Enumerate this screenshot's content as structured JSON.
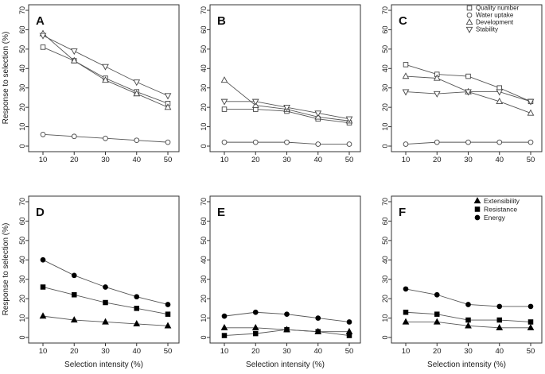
{
  "figure": {
    "y_axis_label": "Response to selection (%)",
    "x_axis_label": "Selection intensity (%)",
    "colors": {
      "line": "#555555",
      "open_marker_stroke": "#444444",
      "open_marker_fill": "#ffffff",
      "filled_marker": "#000000",
      "axis": "#333333",
      "text": "#1a1a1a"
    }
  },
  "chart_data": [
    {
      "type": "line",
      "panel": "A",
      "x": [
        10,
        20,
        30,
        40,
        50
      ],
      "x_ticks": [
        10,
        20,
        30,
        40,
        50
      ],
      "y_ticks": [
        0,
        10,
        20,
        30,
        40,
        50,
        60,
        70
      ],
      "xlim": [
        10,
        50
      ],
      "ylim": [
        0,
        70
      ],
      "legend": false,
      "series": [
        {
          "name": "Quality number",
          "marker": "square",
          "filled": false,
          "values": [
            51,
            44,
            35,
            28,
            22
          ]
        },
        {
          "name": "Water uptake",
          "marker": "circle",
          "filled": false,
          "values": [
            6,
            5,
            4,
            3,
            2
          ]
        },
        {
          "name": "Development",
          "marker": "triangle-up",
          "filled": false,
          "values": [
            58,
            44,
            34,
            27,
            20
          ]
        },
        {
          "name": "Stability",
          "marker": "triangle-down",
          "filled": false,
          "values": [
            57,
            49,
            41,
            33,
            26
          ]
        }
      ]
    },
    {
      "type": "line",
      "panel": "B",
      "x": [
        10,
        20,
        30,
        40,
        50
      ],
      "x_ticks": [
        10,
        20,
        30,
        40,
        50
      ],
      "y_ticks": [
        0,
        10,
        20,
        30,
        40,
        50,
        60,
        70
      ],
      "xlim": [
        10,
        50
      ],
      "ylim": [
        0,
        70
      ],
      "legend": false,
      "series": [
        {
          "name": "Quality number",
          "marker": "square",
          "filled": false,
          "values": [
            19,
            19,
            18,
            14,
            12
          ]
        },
        {
          "name": "Water uptake",
          "marker": "circle",
          "filled": false,
          "values": [
            2,
            2,
            2,
            1,
            1
          ]
        },
        {
          "name": "Development",
          "marker": "triangle-up",
          "filled": false,
          "values": [
            34,
            21,
            19,
            15,
            13
          ]
        },
        {
          "name": "Stability",
          "marker": "triangle-down",
          "filled": false,
          "values": [
            23,
            23,
            20,
            17,
            14
          ]
        }
      ]
    },
    {
      "type": "line",
      "panel": "C",
      "x": [
        10,
        20,
        30,
        40,
        50
      ],
      "x_ticks": [
        10,
        20,
        30,
        40,
        50
      ],
      "y_ticks": [
        0,
        10,
        20,
        30,
        40,
        50,
        60,
        70
      ],
      "xlim": [
        10,
        50
      ],
      "ylim": [
        0,
        70
      ],
      "legend": true,
      "series": [
        {
          "name": "Quality number",
          "marker": "square",
          "filled": false,
          "values": [
            42,
            37,
            36,
            30,
            23
          ]
        },
        {
          "name": "Water uptake",
          "marker": "circle",
          "filled": false,
          "values": [
            1,
            2,
            2,
            2,
            2
          ]
        },
        {
          "name": "Development",
          "marker": "triangle-up",
          "filled": false,
          "values": [
            36,
            35,
            28,
            23,
            17
          ]
        },
        {
          "name": "Stability",
          "marker": "triangle-down",
          "filled": false,
          "values": [
            28,
            27,
            28,
            28,
            23
          ]
        }
      ]
    },
    {
      "type": "line",
      "panel": "D",
      "x": [
        10,
        20,
        30,
        40,
        50
      ],
      "x_ticks": [
        10,
        20,
        30,
        40,
        50
      ],
      "y_ticks": [
        0,
        10,
        20,
        30,
        40,
        50,
        60,
        70
      ],
      "xlim": [
        10,
        50
      ],
      "ylim": [
        0,
        70
      ],
      "legend": false,
      "series": [
        {
          "name": "Extensibility",
          "marker": "triangle-up",
          "filled": true,
          "values": [
            11,
            9,
            8,
            7,
            6
          ]
        },
        {
          "name": "Resistance",
          "marker": "square",
          "filled": true,
          "values": [
            26,
            22,
            18,
            15,
            12
          ]
        },
        {
          "name": "Energy",
          "marker": "circle",
          "filled": true,
          "values": [
            40,
            32,
            26,
            21,
            17
          ]
        }
      ]
    },
    {
      "type": "line",
      "panel": "E",
      "x": [
        10,
        20,
        30,
        40,
        50
      ],
      "x_ticks": [
        10,
        20,
        30,
        40,
        50
      ],
      "y_ticks": [
        0,
        10,
        20,
        30,
        40,
        50,
        60,
        70
      ],
      "xlim": [
        10,
        50
      ],
      "ylim": [
        0,
        70
      ],
      "legend": false,
      "series": [
        {
          "name": "Extensibility",
          "marker": "triangle-up",
          "filled": true,
          "values": [
            5,
            5,
            4,
            3,
            3
          ]
        },
        {
          "name": "Resistance",
          "marker": "square",
          "filled": true,
          "values": [
            1,
            2,
            4,
            3,
            1
          ]
        },
        {
          "name": "Energy",
          "marker": "circle",
          "filled": true,
          "values": [
            11,
            13,
            12,
            10,
            8
          ]
        }
      ]
    },
    {
      "type": "line",
      "panel": "F",
      "x": [
        10,
        20,
        30,
        40,
        50
      ],
      "x_ticks": [
        10,
        20,
        30,
        40,
        50
      ],
      "y_ticks": [
        0,
        10,
        20,
        30,
        40,
        50,
        60,
        70
      ],
      "xlim": [
        10,
        50
      ],
      "ylim": [
        0,
        70
      ],
      "legend": true,
      "series": [
        {
          "name": "Extensibility",
          "marker": "triangle-up",
          "filled": true,
          "values": [
            8,
            8,
            6,
            5,
            5
          ]
        },
        {
          "name": "Resistance",
          "marker": "square",
          "filled": true,
          "values": [
            13,
            12,
            9,
            9,
            8
          ]
        },
        {
          "name": "Energy",
          "marker": "circle",
          "filled": true,
          "values": [
            25,
            22,
            17,
            16,
            16
          ]
        }
      ]
    }
  ]
}
